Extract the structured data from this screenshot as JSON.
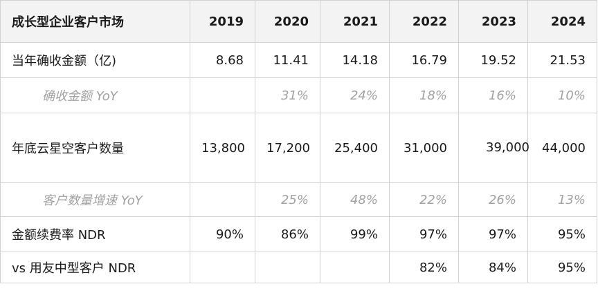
{
  "table": {
    "header": [
      "成长型企业客户市场",
      "2019",
      "2020",
      "2021",
      "2022",
      "2023",
      "2024"
    ],
    "rows": [
      {
        "label": "当年确收金额（亿)",
        "cells": [
          "8.68",
          "11.41",
          "14.18",
          "16.79",
          "19.52",
          "21.53"
        ]
      },
      {
        "label": "确收金额 YoY",
        "cells": [
          "",
          "31%",
          "24%",
          "18%",
          "16%",
          "10%"
        ]
      },
      {
        "label": "年底云星空客户数量",
        "cells": [
          "13,800",
          "17,200",
          "25,400",
          "31,000",
          "39,000",
          "44,000"
        ]
      },
      {
        "label": "客户数量增速 YoY",
        "cells": [
          "",
          "25%",
          "48%",
          "22%",
          "26%",
          "13%"
        ]
      },
      {
        "label": "金额续费率 NDR",
        "cells": [
          "90%",
          "86%",
          "99%",
          "97%",
          "97%",
          "95%"
        ]
      },
      {
        "label": "vs 用友中型客户 NDR",
        "cells": [
          "",
          "",
          "",
          "82%",
          "84%",
          "95%"
        ]
      }
    ]
  }
}
